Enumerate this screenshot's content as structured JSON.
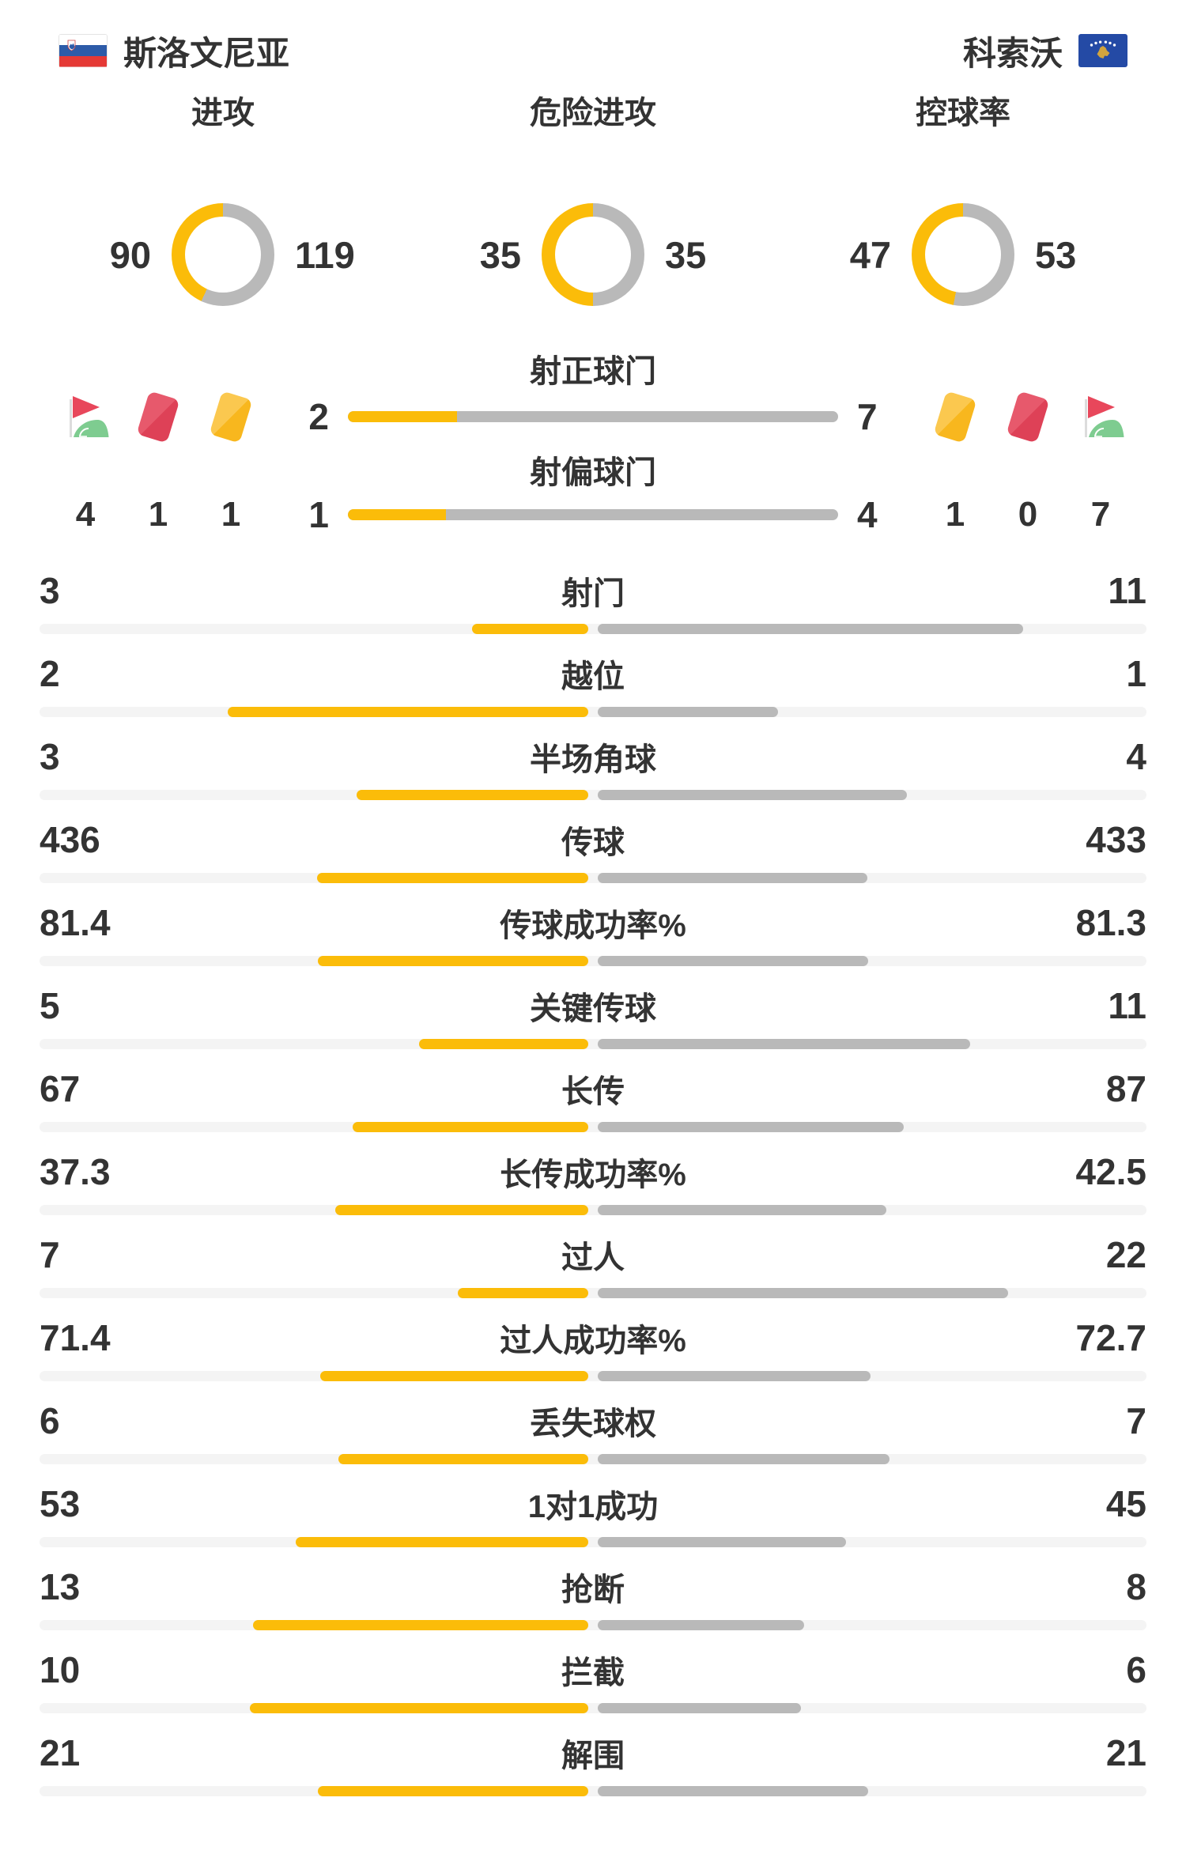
{
  "teams": {
    "home": {
      "name": "斯洛文尼亚",
      "flag": "slovenia-flag"
    },
    "away": {
      "name": "科索沃",
      "flag": "kosovo-flag"
    }
  },
  "colors": {
    "home": "#FBBC09",
    "away": "#B9B9B9",
    "track": "#F4F4F4",
    "text": "#333333"
  },
  "icons": [
    "corner-flag-icon",
    "red-card-icon",
    "yellow-card-icon"
  ],
  "chart_data": {
    "type": "bar",
    "legend_note": "yellow = home (斯洛文尼亚), gray = away (科索沃)",
    "donuts": [
      {
        "label": "进攻",
        "home": 90,
        "away": 119
      },
      {
        "label": "危险进攻",
        "home": 35,
        "away": 35
      },
      {
        "label": "控球率",
        "home": 47,
        "away": 53
      }
    ],
    "shot_bars": [
      {
        "label": "射正球门",
        "home": 2,
        "away": 7
      },
      {
        "label": "射偏球门",
        "home": 1,
        "away": 4
      }
    ],
    "cards_corners": {
      "home": {
        "corner_kicks": 4,
        "red_cards": 1,
        "yellow_cards": 1
      },
      "away": {
        "yellow_cards": 1,
        "red_cards": 0,
        "corner_kicks": 7
      }
    },
    "stats": [
      {
        "label": "射门",
        "home": 3,
        "away": 11
      },
      {
        "label": "越位",
        "home": 2,
        "away": 1
      },
      {
        "label": "半场角球",
        "home": 3,
        "away": 4
      },
      {
        "label": "传球",
        "home": 436,
        "away": 433
      },
      {
        "label": "传球成功率%",
        "home": 81.4,
        "away": 81.3
      },
      {
        "label": "关键传球",
        "home": 5,
        "away": 11
      },
      {
        "label": "长传",
        "home": 67,
        "away": 87
      },
      {
        "label": "长传成功率%",
        "home": 37.3,
        "away": 42.5
      },
      {
        "label": "过人",
        "home": 7,
        "away": 22
      },
      {
        "label": "过人成功率%",
        "home": 71.4,
        "away": 72.7
      },
      {
        "label": "丢失球权",
        "home": 6,
        "away": 7
      },
      {
        "label": "1对1成功",
        "home": 53,
        "away": 45
      },
      {
        "label": "抢断",
        "home": 13,
        "away": 8
      },
      {
        "label": "拦截",
        "home": 10,
        "away": 6
      },
      {
        "label": "解围",
        "home": 21,
        "away": 21
      }
    ]
  }
}
